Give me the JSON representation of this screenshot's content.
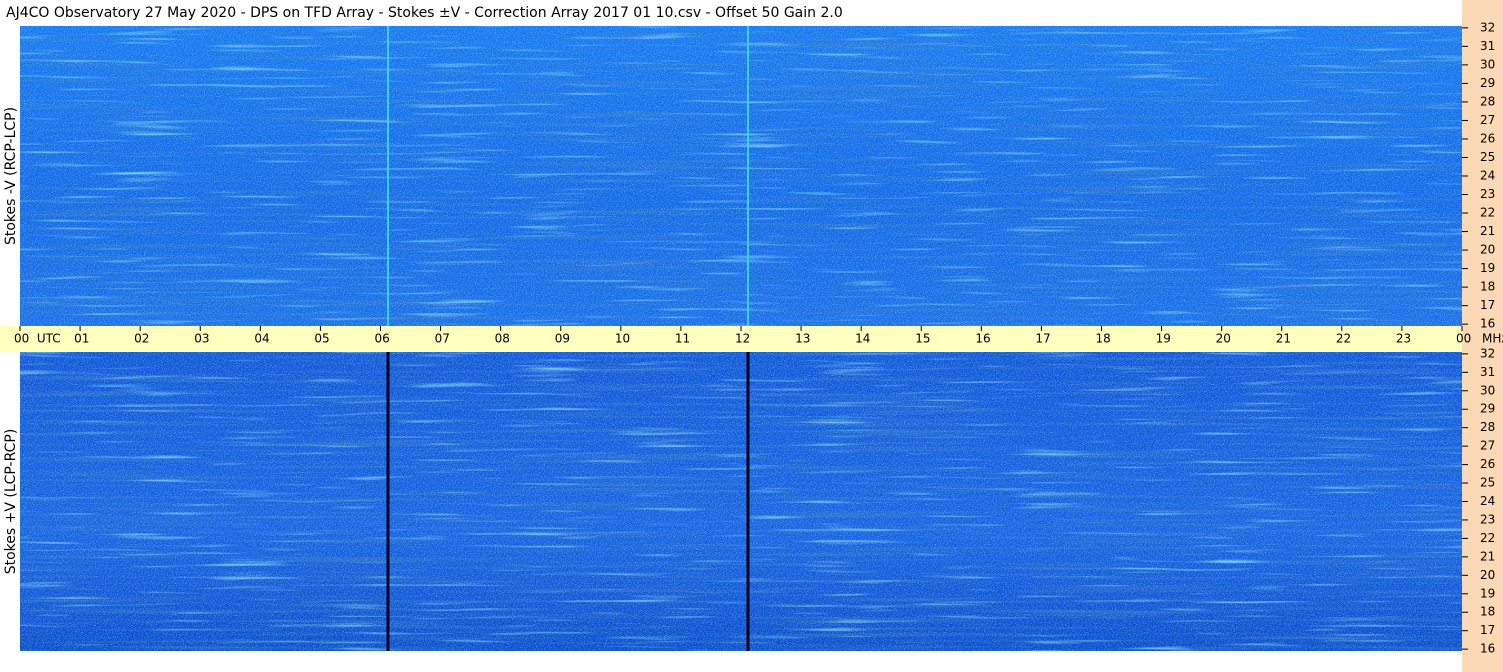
{
  "title": "AJ4CO Observatory  27 May 2020  -  DPS on TFD Array  -  Stokes ±V  -  Correction Array 2017 01 10.csv  -  Offset 50  Gain 2.0",
  "chart_data": [
    {
      "type": "spectrogram",
      "y_label": "Stokes -V (RCP-LCP)",
      "y_unit": "MHz",
      "xlim": [
        0,
        24
      ],
      "xticks": [
        {
          "value": 0,
          "label": "00  UTC"
        },
        {
          "value": 1,
          "label": "01"
        },
        {
          "value": 2,
          "label": "02"
        },
        {
          "value": 3,
          "label": "03"
        },
        {
          "value": 4,
          "label": "04"
        },
        {
          "value": 5,
          "label": "05"
        },
        {
          "value": 6,
          "label": "06"
        },
        {
          "value": 7,
          "label": "07"
        },
        {
          "value": 8,
          "label": "08"
        },
        {
          "value": 9,
          "label": "09"
        },
        10,
        11,
        12,
        13,
        14,
        15,
        16,
        17,
        18,
        19,
        20,
        21,
        22,
        23,
        {
          "value": 24,
          "label": "00"
        }
      ],
      "ylim": [
        15.9,
        32.1
      ],
      "yticks": [
        16,
        17,
        18,
        19,
        20,
        21,
        22,
        23,
        24,
        25,
        26,
        27,
        28,
        29,
        30,
        31,
        32
      ]
    },
    {
      "type": "spectrogram",
      "y_label": "Stokes +V (LCP-RCP)",
      "xlim": [
        0,
        24
      ],
      "ylim": [
        15.9,
        32.1
      ],
      "yticks": [
        16,
        17,
        18,
        19,
        20,
        21,
        22,
        23,
        24,
        25,
        26,
        27,
        28,
        29,
        30,
        31,
        32
      ]
    }
  ]
}
